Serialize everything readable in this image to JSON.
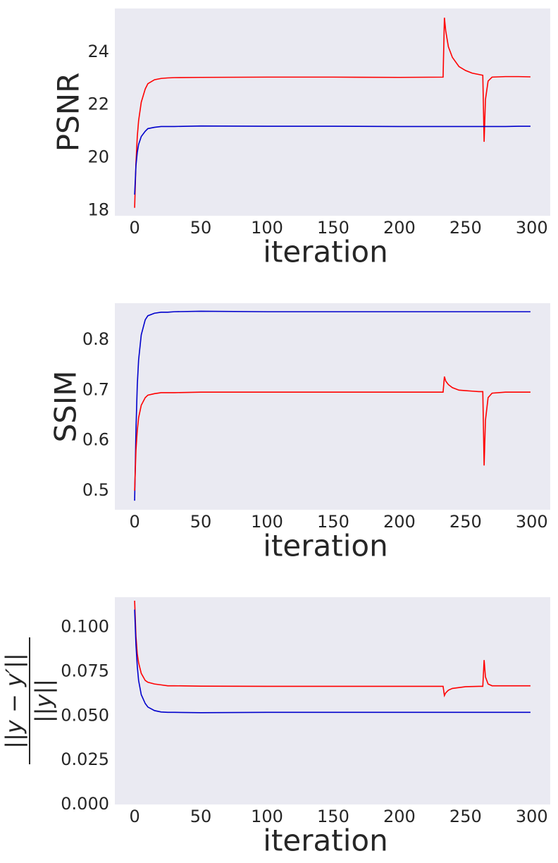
{
  "chart_data": [
    {
      "type": "line",
      "xlabel": "iteration",
      "ylabel": "PSNR",
      "x": [
        0,
        1,
        2,
        3,
        5,
        8,
        10,
        15,
        20,
        25,
        30,
        50,
        100,
        150,
        200,
        233,
        234,
        235,
        237,
        240,
        245,
        250,
        255,
        260,
        263,
        264,
        265,
        267,
        270,
        280,
        290,
        299
      ],
      "series": [
        {
          "color": "#ff0000",
          "values": [
            18.1,
            19.8,
            20.8,
            21.4,
            22.1,
            22.6,
            22.8,
            22.95,
            23.0,
            23.02,
            23.03,
            23.04,
            23.05,
            23.05,
            23.04,
            23.05,
            25.3,
            24.8,
            24.2,
            23.8,
            23.45,
            23.3,
            23.2,
            23.15,
            23.12,
            20.6,
            22.2,
            22.9,
            23.05,
            23.07,
            23.07,
            23.06
          ]
        },
        {
          "color": "#0000cc",
          "values": [
            18.6,
            19.7,
            20.2,
            20.5,
            20.8,
            21.0,
            21.1,
            21.15,
            21.18,
            21.18,
            21.18,
            21.2,
            21.19,
            21.19,
            21.18,
            21.18,
            21.18,
            21.18,
            21.18,
            21.18,
            21.18,
            21.18,
            21.18,
            21.18,
            21.18,
            21.18,
            21.18,
            21.18,
            21.18,
            21.18,
            21.19,
            21.19
          ]
        }
      ],
      "xlim": [
        -14.95,
        313.95
      ],
      "xticks": [
        0,
        50,
        100,
        150,
        200,
        250,
        300
      ],
      "ylim": [
        17.8,
        25.65
      ],
      "yticks": [
        18,
        20,
        22,
        24
      ],
      "grid": false
    },
    {
      "type": "line",
      "xlabel": "iteration",
      "ylabel": "SSIM",
      "x": [
        0,
        1,
        2,
        3,
        5,
        8,
        10,
        15,
        20,
        25,
        30,
        50,
        100,
        150,
        200,
        233,
        234,
        235,
        237,
        240,
        245,
        250,
        255,
        260,
        263,
        264,
        265,
        267,
        270,
        280,
        290,
        299
      ],
      "series": [
        {
          "color": "#0000cc",
          "values": [
            0.48,
            0.62,
            0.71,
            0.76,
            0.81,
            0.84,
            0.848,
            0.853,
            0.855,
            0.855,
            0.856,
            0.857,
            0.856,
            0.856,
            0.856,
            0.856,
            0.856,
            0.856,
            0.856,
            0.856,
            0.856,
            0.856,
            0.856,
            0.856,
            0.856,
            0.856,
            0.856,
            0.856,
            0.856,
            0.856,
            0.856,
            0.856
          ]
        },
        {
          "color": "#ff0000",
          "values": [
            0.5,
            0.58,
            0.62,
            0.645,
            0.67,
            0.685,
            0.69,
            0.693,
            0.695,
            0.695,
            0.695,
            0.696,
            0.696,
            0.696,
            0.696,
            0.696,
            0.727,
            0.718,
            0.711,
            0.705,
            0.7,
            0.699,
            0.698,
            0.697,
            0.697,
            0.55,
            0.64,
            0.685,
            0.694,
            0.696,
            0.696,
            0.696
          ]
        }
      ],
      "xlim": [
        -14.95,
        313.95
      ],
      "xticks": [
        0,
        50,
        100,
        150,
        200,
        250,
        300
      ],
      "ylim": [
        0.462,
        0.873
      ],
      "yticks": [
        0.5,
        0.6,
        0.7,
        0.8
      ],
      "grid": false
    },
    {
      "type": "line",
      "xlabel": "iteration",
      "ylabel": {
        "numerator": "||y − y′||",
        "denominator": "||y||"
      },
      "x": [
        0,
        1,
        2,
        3,
        5,
        8,
        10,
        15,
        20,
        25,
        30,
        50,
        100,
        150,
        200,
        233,
        234,
        235,
        237,
        240,
        245,
        250,
        255,
        260,
        263,
        264,
        265,
        267,
        270,
        280,
        290,
        299
      ],
      "series": [
        {
          "color": "#ff0000",
          "values": [
            0.115,
            0.095,
            0.085,
            0.08,
            0.074,
            0.07,
            0.069,
            0.068,
            0.0675,
            0.067,
            0.067,
            0.0668,
            0.0667,
            0.0667,
            0.0667,
            0.0667,
            0.0615,
            0.063,
            0.0645,
            0.0655,
            0.066,
            0.0665,
            0.0666,
            0.0667,
            0.0667,
            0.0815,
            0.072,
            0.068,
            0.067,
            0.067,
            0.067,
            0.067
          ]
        },
        {
          "color": "#0000cc",
          "values": [
            0.11,
            0.09,
            0.078,
            0.07,
            0.062,
            0.057,
            0.055,
            0.053,
            0.0522,
            0.052,
            0.052,
            0.0518,
            0.052,
            0.052,
            0.052,
            0.052,
            0.052,
            0.052,
            0.052,
            0.052,
            0.052,
            0.052,
            0.052,
            0.052,
            0.052,
            0.052,
            0.052,
            0.052,
            0.052,
            0.052,
            0.052,
            0.052
          ]
        }
      ],
      "xlim": [
        -14.95,
        313.95
      ],
      "xticks": [
        0,
        50,
        100,
        150,
        200,
        250,
        300
      ],
      "ylim": [
        0,
        0.117
      ],
      "yticks": [
        {
          "value": 0,
          "label": "0.000"
        },
        {
          "value": 0.025,
          "label": "0.025"
        },
        {
          "value": 0.05,
          "label": "0.050"
        },
        {
          "value": 0.075,
          "label": "0.075"
        },
        {
          "value": 0.1,
          "label": "0.100"
        }
      ],
      "grid": false
    }
  ]
}
